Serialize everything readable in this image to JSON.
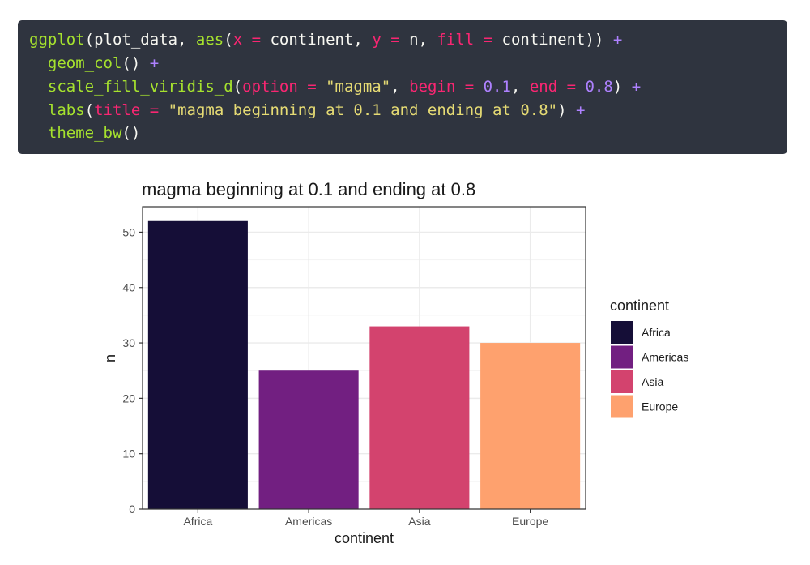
{
  "code": {
    "lines": [
      [
        {
          "t": "ggplot",
          "k": "fn"
        },
        {
          "t": "(plot_data, ",
          "k": "plain"
        },
        {
          "t": "aes",
          "k": "fn"
        },
        {
          "t": "(",
          "k": "plain"
        },
        {
          "t": "x",
          "k": "arg"
        },
        {
          "t": " = ",
          "k": "arg"
        },
        {
          "t": "continent, ",
          "k": "plain"
        },
        {
          "t": "y",
          "k": "arg"
        },
        {
          "t": " = ",
          "k": "arg"
        },
        {
          "t": "n, ",
          "k": "plain"
        },
        {
          "t": "fill",
          "k": "arg"
        },
        {
          "t": " = ",
          "k": "arg"
        },
        {
          "t": "continent)) ",
          "k": "plain"
        },
        {
          "t": "+",
          "k": "plus"
        }
      ],
      [
        {
          "t": "  ",
          "k": "plain"
        },
        {
          "t": "geom_col",
          "k": "fn"
        },
        {
          "t": "() ",
          "k": "plain"
        },
        {
          "t": "+",
          "k": "plus"
        }
      ],
      [
        {
          "t": "  ",
          "k": "plain"
        },
        {
          "t": "scale_fill_viridis_d",
          "k": "fn"
        },
        {
          "t": "(",
          "k": "plain"
        },
        {
          "t": "option",
          "k": "arg"
        },
        {
          "t": " = ",
          "k": "arg"
        },
        {
          "t": "\"magma\"",
          "k": "str"
        },
        {
          "t": ", ",
          "k": "plain"
        },
        {
          "t": "begin",
          "k": "arg"
        },
        {
          "t": " = ",
          "k": "arg"
        },
        {
          "t": "0.1",
          "k": "num"
        },
        {
          "t": ", ",
          "k": "plain"
        },
        {
          "t": "end",
          "k": "arg"
        },
        {
          "t": " = ",
          "k": "arg"
        },
        {
          "t": "0.8",
          "k": "num"
        },
        {
          "t": ") ",
          "k": "plain"
        },
        {
          "t": "+",
          "k": "plus"
        }
      ],
      [
        {
          "t": "  ",
          "k": "plain"
        },
        {
          "t": "labs",
          "k": "fn"
        },
        {
          "t": "(",
          "k": "plain"
        },
        {
          "t": "title",
          "k": "arg"
        },
        {
          "t": " = ",
          "k": "arg"
        },
        {
          "t": "\"magma beginning at 0.1 and ending at 0.8\"",
          "k": "str"
        },
        {
          "t": ") ",
          "k": "plain"
        },
        {
          "t": "+",
          "k": "plus"
        }
      ],
      [
        {
          "t": "  ",
          "k": "plain"
        },
        {
          "t": "theme_bw",
          "k": "fn"
        },
        {
          "t": "()",
          "k": "plain"
        }
      ]
    ]
  },
  "chart_data": {
    "type": "bar",
    "title": "magma beginning at 0.1 and ending at 0.8",
    "xlabel": "continent",
    "ylabel": "n",
    "categories": [
      "Africa",
      "Americas",
      "Asia",
      "Europe"
    ],
    "values": [
      52,
      25,
      33,
      30
    ],
    "colors": [
      "#150e37",
      "#721f81",
      "#d3436e",
      "#fea16e"
    ],
    "ylim": [
      0,
      54.6
    ],
    "yticks": [
      0,
      10,
      20,
      30,
      40,
      50
    ],
    "grid": true,
    "legend": {
      "title": "continent",
      "placement": "right",
      "entries": [
        "Africa",
        "Americas",
        "Asia",
        "Europe"
      ]
    }
  }
}
